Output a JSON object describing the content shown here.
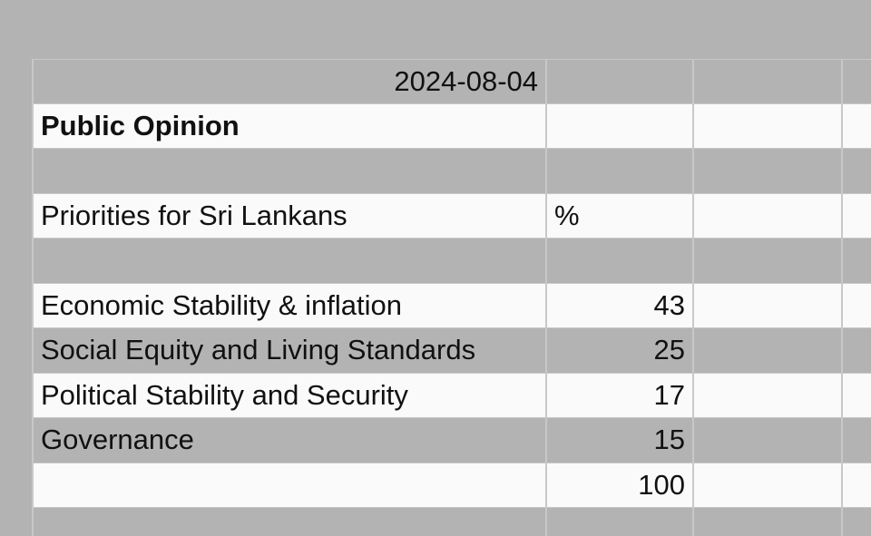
{
  "sheet": {
    "date": "2024-08-04",
    "title": "Public Opinion",
    "table_header": {
      "label": "Priorities for Sri Lankans",
      "unit": "%"
    },
    "rows": [
      {
        "label": "Economic Stability & inflation",
        "value": "43"
      },
      {
        "label": "Social Equity and Living Standards",
        "value": "25"
      },
      {
        "label": "Political Stability and Security",
        "value": "17"
      },
      {
        "label": "Governance",
        "value": "15"
      }
    ],
    "total": "100"
  }
}
